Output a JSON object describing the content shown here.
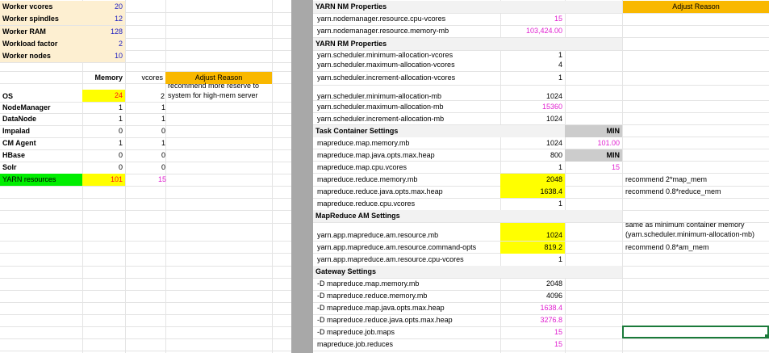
{
  "workers": [
    {
      "label": "Worker vcores",
      "value": "20"
    },
    {
      "label": "Worker spindles",
      "value": "12"
    },
    {
      "label": "Worker RAM",
      "value": "128"
    },
    {
      "label": "Workload factor",
      "value": "2"
    },
    {
      "label": "Worker nodes",
      "value": "10"
    }
  ],
  "resources": {
    "memory_header": "Memory",
    "vcores_header": "vcores",
    "adjust_header": "Adjust Reason",
    "note_line1": "recommend more reserve to",
    "note_line2": "system for high-mem server",
    "rows": [
      {
        "label": "OS",
        "memory": "24",
        "vcores": "2"
      },
      {
        "label": "NodeManager",
        "memory": "1",
        "vcores": "1"
      },
      {
        "label": "DataNode",
        "memory": "1",
        "vcores": "1"
      },
      {
        "label": "Impalad",
        "memory": "0",
        "vcores": "0"
      },
      {
        "label": "CM Agent",
        "memory": "1",
        "vcores": "1"
      },
      {
        "label": "HBase",
        "memory": "0",
        "vcores": "0"
      },
      {
        "label": "Solr",
        "memory": "0",
        "vcores": "0"
      }
    ],
    "total": {
      "label": "YARN resources",
      "memory": "101",
      "vcores": "15"
    }
  },
  "config": {
    "adjust_header": "Adjust Reason",
    "min_label": "MIN",
    "min_value": "101.00",
    "min_vcores": "15",
    "nm_header": "YARN NM Properties",
    "nm_rows": [
      {
        "key": "yarn.nodemanager.resource.cpu-vcores",
        "value": "15"
      },
      {
        "key": "yarn.nodemanager.resource.memory-mb",
        "value": "103,424.00"
      }
    ],
    "rm_header": "YARN RM Properties",
    "rm_rows": [
      {
        "key": "yarn.scheduler.minimum-allocation-vcores",
        "value": "1"
      },
      {
        "key": "yarn.scheduler.maximum-allocation-vcores",
        "value": "4"
      },
      {
        "key": "yarn.scheduler.increment-allocation-vcores",
        "value": "1"
      },
      {
        "key": "yarn.scheduler.minimum-allocation-mb",
        "value": "1024"
      },
      {
        "key": "yarn.scheduler.maximum-allocation-mb",
        "value": "15360"
      },
      {
        "key": "yarn.scheduler.increment-allocation-mb",
        "value": "1024"
      }
    ],
    "task_header": "Task Container Settings",
    "task_rows": [
      {
        "key": "mapreduce.map.memory.mb",
        "value": "1024"
      },
      {
        "key": "mapreduce.map.java.opts.max.heap",
        "value": "800"
      },
      {
        "key": "mapreduce.map.cpu.vcores",
        "value": "1"
      },
      {
        "key": "mapreduce.reduce.memory.mb",
        "value": "2048",
        "note": "recommend 2*map_mem"
      },
      {
        "key": "mapreduce.reduce.java.opts.max.heap",
        "value": "1638.4",
        "note": "recommend 0.8*reduce_mem"
      },
      {
        "key": "mapreduce.reduce.cpu.vcores",
        "value": "1"
      }
    ],
    "am_header": "MapReduce AM Settings",
    "am_rows": [
      {
        "key": "yarn.app.mapreduce.am.resource.mb",
        "value": "1024",
        "note1": "same as minimum container memory",
        "note2": "(yarn.scheduler.minimum-allocation-mb)"
      },
      {
        "key": "yarn.app.mapreduce.am.resource.command-opts",
        "value": "819.2",
        "note1": "recommend 0.8*am_mem"
      },
      {
        "key": "yarn.app.mapreduce.am.resource.cpu-vcores",
        "value": "1"
      }
    ],
    "gw_header": "Gateway Settings",
    "gw_rows": [
      {
        "key": "-D mapreduce.map.memory.mb",
        "value": "2048"
      },
      {
        "key": "-D mapreduce.reduce.memory.mb",
        "value": "4096"
      },
      {
        "key": "-D mapreduce.map.java.opts.max.heap",
        "value": "1638.4"
      },
      {
        "key": "-D mapreduce.reduce.java.opts.max.heap",
        "value": "3276.8"
      },
      {
        "key": "-D mapreduce.job.maps",
        "value": "15"
      },
      {
        "key": "mapreduce.job.reduces",
        "value": "15"
      }
    ]
  }
}
